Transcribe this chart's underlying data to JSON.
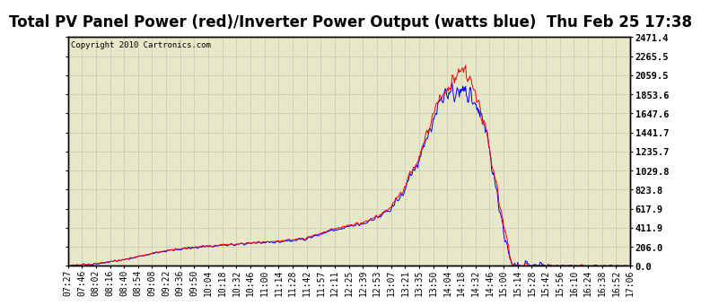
{
  "title": "Total PV Panel Power (red)/Inverter Power Output (watts blue)  Thu Feb 25 17:38",
  "copyright": "Copyright 2010 Cartronics.com",
  "yticks": [
    0.0,
    206.0,
    411.9,
    617.9,
    823.8,
    1029.8,
    1235.7,
    1441.7,
    1647.6,
    1853.6,
    2059.5,
    2265.5,
    2471.4
  ],
  "ymax": 2471.4,
  "ymin": 0.0,
  "xtick_labels": [
    "07:27",
    "07:46",
    "08:02",
    "08:16",
    "08:40",
    "08:54",
    "09:08",
    "09:22",
    "09:36",
    "09:50",
    "10:04",
    "10:18",
    "10:32",
    "10:46",
    "11:00",
    "11:14",
    "11:28",
    "11:42",
    "11:57",
    "12:11",
    "12:25",
    "12:39",
    "12:53",
    "13:07",
    "13:21",
    "13:35",
    "13:50",
    "14:04",
    "14:18",
    "14:32",
    "14:46",
    "15:00",
    "15:14",
    "15:28",
    "15:42",
    "15:56",
    "16:10",
    "16:24",
    "16:38",
    "16:52",
    "17:06"
  ],
  "bg_color": "#e8e8c8",
  "grid_color": "#aaaaaa",
  "red_line_color": "red",
  "blue_line_color": "blue",
  "title_fontsize": 12,
  "tick_fontsize": 7,
  "title_bg": "#ffffff",
  "border_color": "#000000"
}
